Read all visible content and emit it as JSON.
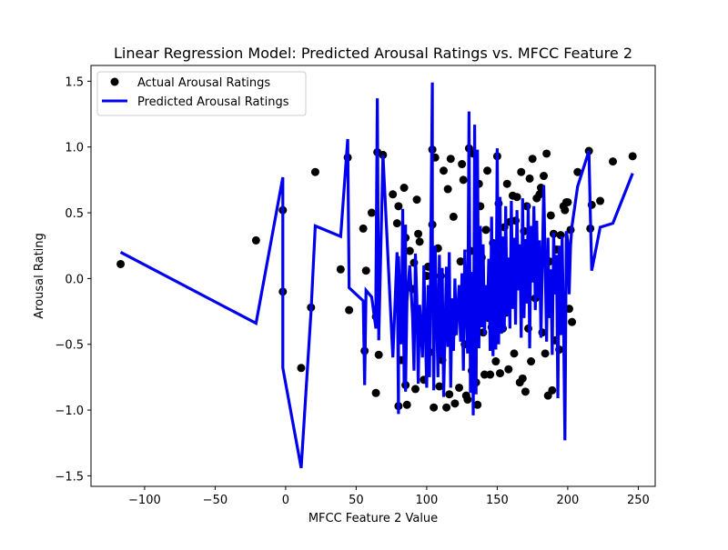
{
  "chart_data": {
    "type": "scatter",
    "title": "Linear Regression Model: Predicted Arousal Ratings vs. MFCC Feature 2",
    "xlabel": "MFCC Feature 2 Value",
    "ylabel": "Arousal Rating",
    "xlim": [
      -138,
      262
    ],
    "ylim": [
      -1.58,
      1.62
    ],
    "xticks": [
      -100,
      -50,
      0,
      50,
      100,
      150,
      200,
      250
    ],
    "xtick_labels": [
      "−100",
      "−50",
      "0",
      "50",
      "100",
      "150",
      "200",
      "250"
    ],
    "yticks": [
      -1.5,
      -1.0,
      -0.5,
      0.0,
      0.5,
      1.0,
      1.5
    ],
    "ytick_labels": [
      "−1.5",
      "−1.0",
      "−0.5",
      "0.0",
      "0.5",
      "1.0",
      "1.5"
    ],
    "grid": false,
    "legend_position": "top-left",
    "series": [
      {
        "name": "Actual Arousal Ratings",
        "kind": "scatter",
        "color": "#000000",
        "points": [
          [
            -117,
            0.11
          ],
          [
            -21,
            0.29
          ],
          [
            -2,
            0.52
          ],
          [
            -2,
            -0.1
          ],
          [
            11,
            -0.68
          ],
          [
            18,
            -0.22
          ],
          [
            21,
            0.81
          ],
          [
            39,
            0.07
          ],
          [
            44,
            0.92
          ],
          [
            45,
            -0.24
          ],
          [
            55,
            0.38
          ],
          [
            56,
            -0.55
          ],
          [
            57,
            0.06
          ],
          [
            61,
            0.5
          ],
          [
            64,
            -0.87
          ],
          [
            64,
            -0.29
          ],
          [
            65,
            0.96
          ],
          [
            66,
            -0.58
          ],
          [
            69,
            0.94
          ],
          [
            76,
            0.64
          ],
          [
            79,
            0.42
          ],
          [
            80,
            -0.97
          ],
          [
            80,
            0.55
          ],
          [
            82,
            -0.62
          ],
          [
            83,
            -0.42
          ],
          [
            84,
            0.69
          ],
          [
            85,
            0.31
          ],
          [
            85,
            -0.81
          ],
          [
            86,
            -0.96
          ],
          [
            88,
            0.21
          ],
          [
            90,
            -0.08
          ],
          [
            91,
            0.12
          ],
          [
            92,
            -0.84
          ],
          [
            93,
            0.6
          ],
          [
            94,
            0.34
          ],
          [
            95,
            0.28
          ],
          [
            97,
            -0.36
          ],
          [
            98,
            -0.77
          ],
          [
            100,
            0.02
          ],
          [
            101,
            0.09
          ],
          [
            102,
            -0.56
          ],
          [
            104,
            0.41
          ],
          [
            104,
            0.98
          ],
          [
            105,
            -0.98
          ],
          [
            106,
            0.92
          ],
          [
            108,
            0.23
          ],
          [
            109,
            -0.82
          ],
          [
            110,
            0.02
          ],
          [
            111,
            -0.62
          ],
          [
            112,
            0.82
          ],
          [
            114,
            -0.98
          ],
          [
            115,
            0.68
          ],
          [
            116,
            -0.88
          ],
          [
            117,
            0.91
          ],
          [
            118,
            -0.42
          ],
          [
            119,
            0.47
          ],
          [
            120,
            -0.95
          ],
          [
            121,
            -0.21
          ],
          [
            123,
            -0.83
          ],
          [
            124,
            0.13
          ],
          [
            125,
            0.87
          ],
          [
            126,
            0.75
          ],
          [
            127,
            -0.5
          ],
          [
            128,
            -0.89
          ],
          [
            129,
            -0.92
          ],
          [
            130,
            0.99
          ],
          [
            131,
            0.21
          ],
          [
            132,
            -0.7
          ],
          [
            133,
            0.95
          ],
          [
            134,
            -0.05
          ],
          [
            135,
            -0.79
          ],
          [
            136,
            -0.96
          ],
          [
            137,
            0.72
          ],
          [
            138,
            0.55
          ],
          [
            139,
            0.16
          ],
          [
            140,
            -0.41
          ],
          [
            141,
            -0.73
          ],
          [
            142,
            0.37
          ],
          [
            143,
            0.82
          ],
          [
            144,
            -0.3
          ],
          [
            145,
            -0.73
          ],
          [
            146,
            -0.37
          ],
          [
            147,
            0.27
          ],
          [
            148,
            -0.28
          ],
          [
            149,
            -0.63
          ],
          [
            150,
            0.93
          ],
          [
            151,
            0.57
          ],
          [
            152,
            -0.72
          ],
          [
            153,
            0.15
          ],
          [
            154,
            -0.38
          ],
          [
            155,
            0.39
          ],
          [
            156,
            -0.26
          ],
          [
            157,
            0.72
          ],
          [
            158,
            -0.69
          ],
          [
            159,
            0.43
          ],
          [
            160,
            0.01
          ],
          [
            161,
            0.63
          ],
          [
            162,
            -0.57
          ],
          [
            163,
            0.44
          ],
          [
            164,
            0.62
          ],
          [
            165,
            0.18
          ],
          [
            166,
            -0.79
          ],
          [
            167,
            0.81
          ],
          [
            168,
            -0.76
          ],
          [
            169,
            0.36
          ],
          [
            170,
            -0.86
          ],
          [
            171,
            0.55
          ],
          [
            172,
            -0.38
          ],
          [
            173,
            0.76
          ],
          [
            174,
            -0.63
          ],
          [
            175,
            0.91
          ],
          [
            176,
            0.31
          ],
          [
            177,
            -0.15
          ],
          [
            178,
            0.61
          ],
          [
            179,
            0.05
          ],
          [
            180,
            0.64
          ],
          [
            181,
            0.69
          ],
          [
            182,
            -0.41
          ],
          [
            183,
            0.78
          ],
          [
            184,
            -0.57
          ],
          [
            185,
            0.95
          ],
          [
            186,
            -0.89
          ],
          [
            187,
            0.13
          ],
          [
            188,
            0.48
          ],
          [
            189,
            -0.85
          ],
          [
            190,
            0.34
          ],
          [
            191,
            -0.47
          ],
          [
            192,
            0.22
          ],
          [
            193,
            0.06
          ],
          [
            194,
            -0.54
          ],
          [
            195,
            0.33
          ],
          [
            196,
            -0.19
          ],
          [
            197,
            0.55
          ],
          [
            198,
            0.52
          ],
          [
            199,
            0.58
          ],
          [
            200,
            0.58
          ],
          [
            201,
            -0.23
          ],
          [
            202,
            0.37
          ],
          [
            203,
            -0.33
          ],
          [
            207,
            0.81
          ],
          [
            215,
            0.97
          ],
          [
            216,
            0.38
          ],
          [
            217,
            0.56
          ],
          [
            223,
            0.59
          ],
          [
            232,
            0.89
          ],
          [
            246,
            0.93
          ]
        ]
      },
      {
        "name": "Predicted Arousal Ratings",
        "kind": "line",
        "color": "#0000ee",
        "points": [
          [
            -117,
            0.2
          ],
          [
            -21,
            -0.34
          ],
          [
            -2,
            0.77
          ],
          [
            -2,
            -0.68
          ],
          [
            11,
            -1.44
          ],
          [
            18,
            -0.25
          ],
          [
            21,
            0.4
          ],
          [
            39,
            0.32
          ],
          [
            44,
            1.06
          ],
          [
            45,
            -0.07
          ],
          [
            55,
            -0.17
          ],
          [
            56,
            -0.81
          ],
          [
            57,
            -0.09
          ],
          [
            61,
            -0.14
          ],
          [
            64,
            -0.38
          ],
          [
            64,
            -0.09
          ],
          [
            65,
            1.37
          ],
          [
            66,
            -0.47
          ],
          [
            69,
            0.94
          ],
          [
            76,
            -0.6
          ],
          [
            79,
            0.2
          ],
          [
            80,
            -1.03
          ],
          [
            80,
            0.17
          ],
          [
            82,
            -0.5
          ],
          [
            83,
            0.53
          ],
          [
            84,
            -0.8
          ],
          [
            85,
            0.41
          ],
          [
            85,
            -0.86
          ],
          [
            86,
            -0.17
          ],
          [
            88,
            0.1
          ],
          [
            90,
            -0.3
          ],
          [
            91,
            -0.7
          ],
          [
            92,
            0.19
          ],
          [
            93,
            -0.15
          ],
          [
            94,
            -0.8
          ],
          [
            95,
            -0.2
          ],
          [
            97,
            -0.6
          ],
          [
            98,
            0.1
          ],
          [
            100,
            -0.83
          ],
          [
            101,
            -0.05
          ],
          [
            102,
            -0.75
          ],
          [
            104,
            1.49
          ],
          [
            104,
            0.3
          ],
          [
            105,
            -0.85
          ],
          [
            106,
            0.25
          ],
          [
            108,
            -0.75
          ],
          [
            109,
            0.18
          ],
          [
            110,
            -0.6
          ],
          [
            111,
            0.08
          ],
          [
            112,
            -0.9
          ],
          [
            114,
            0.09
          ],
          [
            115,
            -0.52
          ],
          [
            116,
            0.2
          ],
          [
            117,
            -0.83
          ],
          [
            118,
            -0.15
          ],
          [
            119,
            -0.55
          ],
          [
            120,
            0.0
          ],
          [
            121,
            -0.43
          ],
          [
            123,
            -0.05
          ],
          [
            124,
            -0.48
          ],
          [
            125,
            0.04
          ],
          [
            126,
            -0.7
          ],
          [
            127,
            0.22
          ],
          [
            128,
            -0.22
          ],
          [
            129,
            -0.57
          ],
          [
            130,
            1.27
          ],
          [
            131,
            -0.87
          ],
          [
            132,
            0.05
          ],
          [
            133,
            -1.04
          ],
          [
            134,
            1.17
          ],
          [
            135,
            -0.88
          ],
          [
            136,
            0.98
          ],
          [
            137,
            -0.53
          ],
          [
            138,
            0.4
          ],
          [
            139,
            -0.37
          ],
          [
            140,
            0.26
          ],
          [
            141,
            -0.43
          ],
          [
            142,
            -0.05
          ],
          [
            143,
            -0.32
          ],
          [
            144,
            0.15
          ],
          [
            145,
            -0.55
          ],
          [
            146,
            0.47
          ],
          [
            147,
            -0.59
          ],
          [
            148,
            0.29
          ],
          [
            149,
            -0.54
          ],
          [
            150,
            0.99
          ],
          [
            151,
            -0.5
          ],
          [
            152,
            0.62
          ],
          [
            153,
            -0.42
          ],
          [
            154,
            0.32
          ],
          [
            155,
            -0.4
          ],
          [
            156,
            0.55
          ],
          [
            157,
            -0.28
          ],
          [
            158,
            0.16
          ],
          [
            159,
            -0.38
          ],
          [
            160,
            0.59
          ],
          [
            161,
            -0.23
          ],
          [
            162,
            0.31
          ],
          [
            163,
            -0.35
          ],
          [
            164,
            0.52
          ],
          [
            165,
            -0.09
          ],
          [
            166,
            0.26
          ],
          [
            167,
            -0.45
          ],
          [
            168,
            0.61
          ],
          [
            169,
            -0.3
          ],
          [
            170,
            0.3
          ],
          [
            171,
            -0.19
          ],
          [
            172,
            0.57
          ],
          [
            173,
            -0.53
          ],
          [
            174,
            0.4
          ],
          [
            175,
            -0.03
          ],
          [
            176,
            0.55
          ],
          [
            177,
            -0.24
          ],
          [
            178,
            0.44
          ],
          [
            179,
            -0.15
          ],
          [
            180,
            0.29
          ],
          [
            181,
            -0.45
          ],
          [
            182,
            0.13
          ],
          [
            183,
            0.71
          ],
          [
            184,
            0.1
          ],
          [
            185,
            -0.48
          ],
          [
            186,
            0.31
          ],
          [
            187,
            -0.3
          ],
          [
            188,
            0.07
          ],
          [
            189,
            -0.58
          ],
          [
            190,
            0.35
          ],
          [
            191,
            -0.12
          ],
          [
            192,
            0.18
          ],
          [
            193,
            -0.91
          ],
          [
            194,
            0.25
          ],
          [
            195,
            -0.43
          ],
          [
            196,
            0.32
          ],
          [
            197,
            -0.34
          ],
          [
            198,
            -1.23
          ],
          [
            199,
            0.36
          ],
          [
            200,
            0.29
          ],
          [
            201,
            -0.12
          ],
          [
            202,
            0.25
          ],
          [
            203,
            0.4
          ],
          [
            207,
            0.7
          ],
          [
            215,
            0.97
          ],
          [
            216,
            0.5
          ],
          [
            217,
            0.06
          ],
          [
            223,
            0.39
          ],
          [
            232,
            0.42
          ],
          [
            246,
            0.8
          ]
        ]
      }
    ]
  }
}
